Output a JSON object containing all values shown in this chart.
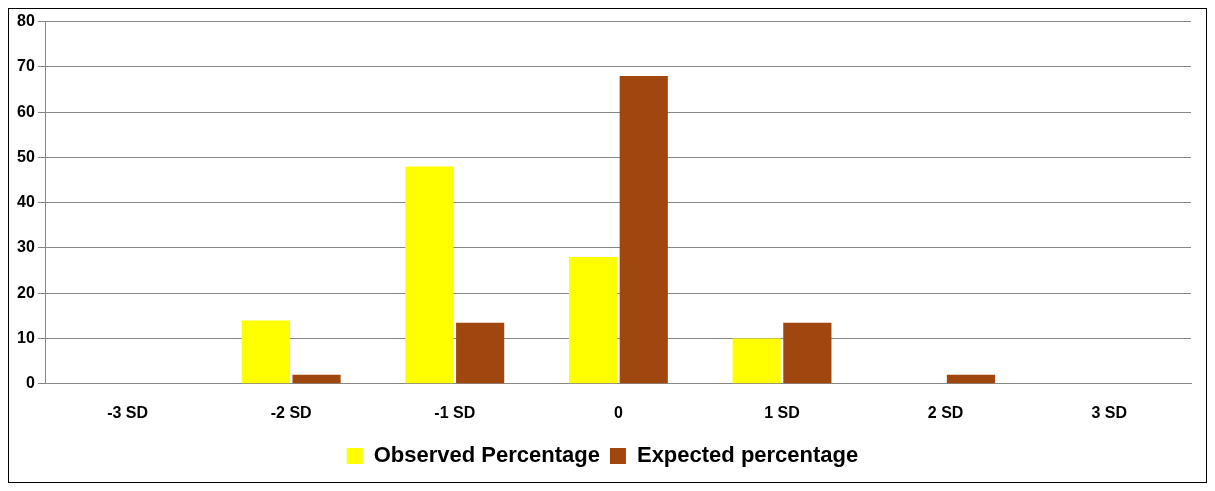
{
  "chart_data": {
    "type": "bar",
    "categories": [
      "-3 SD",
      "-2 SD",
      "-1 SD",
      "0",
      "1 SD",
      "2 SD",
      "3 SD"
    ],
    "series": [
      {
        "name": "Observed Percentage",
        "color": "#ffff00",
        "values": [
          0,
          14,
          48,
          28,
          10,
          0,
          0
        ]
      },
      {
        "name": "Expected percentage",
        "color": "#a0460f",
        "values": [
          0,
          2,
          13.5,
          68,
          13.5,
          2,
          0
        ]
      }
    ],
    "ylim": [
      0,
      80
    ],
    "yticks": [
      0,
      10,
      20,
      30,
      40,
      50,
      60,
      70,
      80
    ],
    "grid": "y",
    "legend": "bottom"
  }
}
